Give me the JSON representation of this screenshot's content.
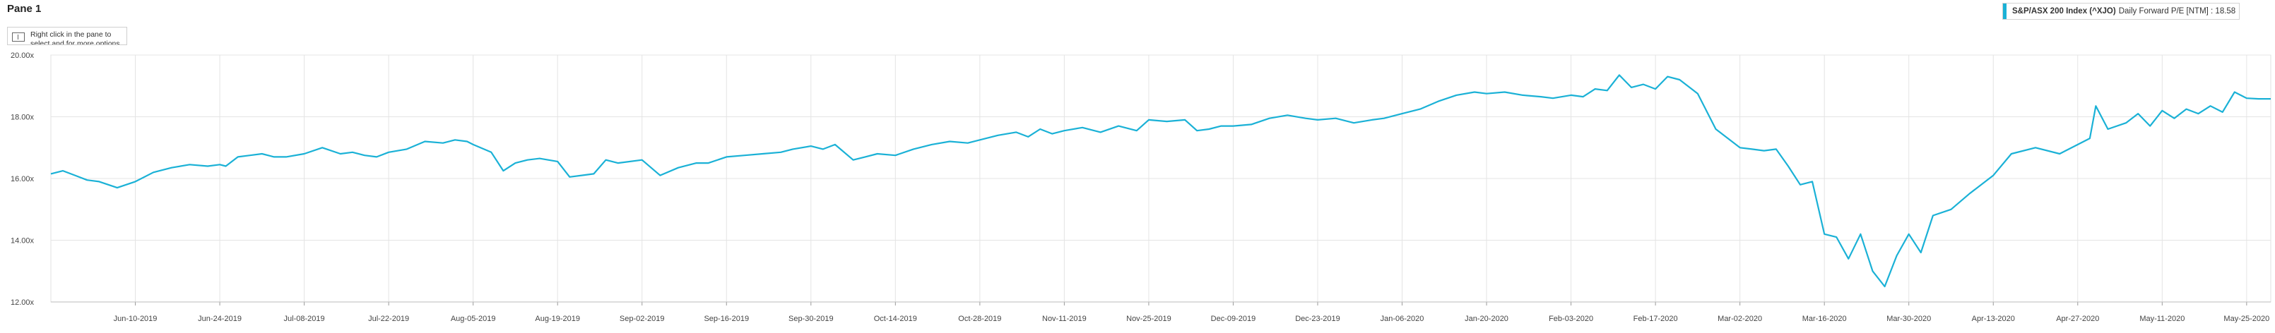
{
  "pane": {
    "title": "Pane 1",
    "hint": "Right click in the pane to select and for more options",
    "hint_icon": "chart-settings-icon"
  },
  "legend": {
    "series_name": "S&P/ASX 200 Index (^XJO)",
    "series_detail": "Daily Forward P/E [NTM] : 18.58",
    "color": "#1ab1d6"
  },
  "chart_data": {
    "type": "line",
    "title": "",
    "xlabel": "",
    "ylabel": "",
    "ylim": [
      12.0,
      20.0
    ],
    "y_ticks": [
      "20.00x",
      "18.00x",
      "16.00x",
      "14.00x",
      "12.00x"
    ],
    "y_tick_values": [
      20,
      18,
      16,
      14,
      12
    ],
    "x_ticks": [
      "Jun-10-2019",
      "Jun-24-2019",
      "Jul-08-2019",
      "Jul-22-2019",
      "Aug-05-2019",
      "Aug-19-2019",
      "Sep-02-2019",
      "Sep-16-2019",
      "Sep-30-2019",
      "Oct-14-2019",
      "Oct-28-2019",
      "Nov-11-2019",
      "Nov-25-2019",
      "Dec-09-2019",
      "Dec-23-2019",
      "Jan-06-2020",
      "Jan-20-2020",
      "Feb-03-2020",
      "Feb-17-2020",
      "Mar-02-2020",
      "Mar-16-2020",
      "Mar-30-2020",
      "Apr-13-2020",
      "Apr-27-2020",
      "May-11-2020",
      "May-25-2020"
    ],
    "grid": true,
    "legend_position": "top-right",
    "series": [
      {
        "name": "S&P/ASX 200 Index (^XJO)",
        "color": "#1ab1d6",
        "x": [
          "2019-05-27",
          "2019-05-29",
          "2019-05-31",
          "2019-06-02",
          "2019-06-04",
          "2019-06-07",
          "2019-06-10",
          "2019-06-13",
          "2019-06-16",
          "2019-06-19",
          "2019-06-22",
          "2019-06-24",
          "2019-06-25",
          "2019-06-27",
          "2019-06-29",
          "2019-07-01",
          "2019-07-03",
          "2019-07-05",
          "2019-07-08",
          "2019-07-11",
          "2019-07-14",
          "2019-07-16",
          "2019-07-18",
          "2019-07-20",
          "2019-07-22",
          "2019-07-25",
          "2019-07-28",
          "2019-07-31",
          "2019-08-02",
          "2019-08-04",
          "2019-08-05",
          "2019-08-08",
          "2019-08-10",
          "2019-08-12",
          "2019-08-14",
          "2019-08-16",
          "2019-08-19",
          "2019-08-21",
          "2019-08-23",
          "2019-08-25",
          "2019-08-27",
          "2019-08-29",
          "2019-09-02",
          "2019-09-05",
          "2019-09-08",
          "2019-09-11",
          "2019-09-13",
          "2019-09-16",
          "2019-09-19",
          "2019-09-22",
          "2019-09-25",
          "2019-09-27",
          "2019-09-30",
          "2019-10-02",
          "2019-10-04",
          "2019-10-07",
          "2019-10-09",
          "2019-10-11",
          "2019-10-14",
          "2019-10-17",
          "2019-10-20",
          "2019-10-23",
          "2019-10-26",
          "2019-10-28",
          "2019-10-31",
          "2019-11-03",
          "2019-11-05",
          "2019-11-07",
          "2019-11-09",
          "2019-11-11",
          "2019-11-14",
          "2019-11-17",
          "2019-11-20",
          "2019-11-23",
          "2019-11-25",
          "2019-11-28",
          "2019-12-01",
          "2019-12-03",
          "2019-12-05",
          "2019-12-07",
          "2019-12-09",
          "2019-12-12",
          "2019-12-15",
          "2019-12-18",
          "2019-12-21",
          "2019-12-23",
          "2019-12-26",
          "2019-12-29",
          "2020-01-01",
          "2020-01-03",
          "2020-01-06",
          "2020-01-09",
          "2020-01-12",
          "2020-01-15",
          "2020-01-18",
          "2020-01-20",
          "2020-01-23",
          "2020-01-26",
          "2020-01-29",
          "2020-01-31",
          "2020-02-03",
          "2020-02-05",
          "2020-02-07",
          "2020-02-09",
          "2020-02-11",
          "2020-02-13",
          "2020-02-15",
          "2020-02-17",
          "2020-02-19",
          "2020-02-21",
          "2020-02-24",
          "2020-02-27",
          "2020-03-02",
          "2020-03-04",
          "2020-03-06",
          "2020-03-08",
          "2020-03-10",
          "2020-03-12",
          "2020-03-14",
          "2020-03-16",
          "2020-03-18",
          "2020-03-20",
          "2020-03-22",
          "2020-03-24",
          "2020-03-26",
          "2020-03-28",
          "2020-03-30",
          "2020-04-01",
          "2020-04-03",
          "2020-04-06",
          "2020-04-09",
          "2020-04-13",
          "2020-04-16",
          "2020-04-20",
          "2020-04-24",
          "2020-04-27",
          "2020-04-29",
          "2020-04-30",
          "2020-05-02",
          "2020-05-05",
          "2020-05-07",
          "2020-05-09",
          "2020-05-11",
          "2020-05-13",
          "2020-05-15",
          "2020-05-17",
          "2020-05-19",
          "2020-05-21",
          "2020-05-23",
          "2020-05-25",
          "2020-05-27",
          "2020-05-29"
        ],
        "values": [
          16.15,
          16.25,
          16.1,
          15.95,
          15.9,
          15.7,
          15.9,
          16.2,
          16.35,
          16.45,
          16.4,
          16.45,
          16.4,
          16.7,
          16.75,
          16.8,
          16.7,
          16.7,
          16.8,
          17.0,
          16.8,
          16.85,
          16.75,
          16.7,
          16.85,
          16.95,
          17.2,
          17.15,
          17.25,
          17.2,
          17.1,
          16.85,
          16.25,
          16.5,
          16.6,
          16.65,
          16.55,
          16.05,
          16.1,
          16.15,
          16.6,
          16.5,
          16.6,
          16.1,
          16.35,
          16.5,
          16.5,
          16.7,
          16.75,
          16.8,
          16.85,
          16.95,
          17.05,
          16.95,
          17.1,
          16.6,
          16.7,
          16.8,
          16.75,
          16.95,
          17.1,
          17.2,
          17.15,
          17.25,
          17.4,
          17.5,
          17.35,
          17.6,
          17.45,
          17.55,
          17.65,
          17.5,
          17.7,
          17.55,
          17.9,
          17.85,
          17.9,
          17.55,
          17.6,
          17.7,
          17.7,
          17.75,
          17.95,
          18.05,
          17.95,
          17.9,
          17.95,
          17.8,
          17.9,
          17.95,
          18.1,
          18.25,
          18.5,
          18.7,
          18.8,
          18.75,
          18.8,
          18.7,
          18.65,
          18.6,
          18.7,
          18.65,
          18.9,
          18.85,
          19.35,
          18.95,
          19.05,
          18.9,
          19.3,
          19.2,
          18.75,
          17.6,
          17.0,
          16.95,
          16.9,
          16.95,
          16.4,
          15.8,
          15.9,
          14.2,
          14.1,
          13.4,
          14.2,
          13.0,
          12.5,
          13.5,
          14.2,
          13.6,
          14.8,
          15.0,
          15.5,
          16.1,
          16.8,
          17.0,
          16.8,
          17.1,
          17.3,
          18.35,
          17.6,
          17.8,
          18.1,
          17.7,
          18.2,
          17.95,
          18.25,
          18.1,
          18.35,
          18.15,
          18.8,
          18.6,
          18.58,
          18.58
        ]
      }
    ]
  }
}
